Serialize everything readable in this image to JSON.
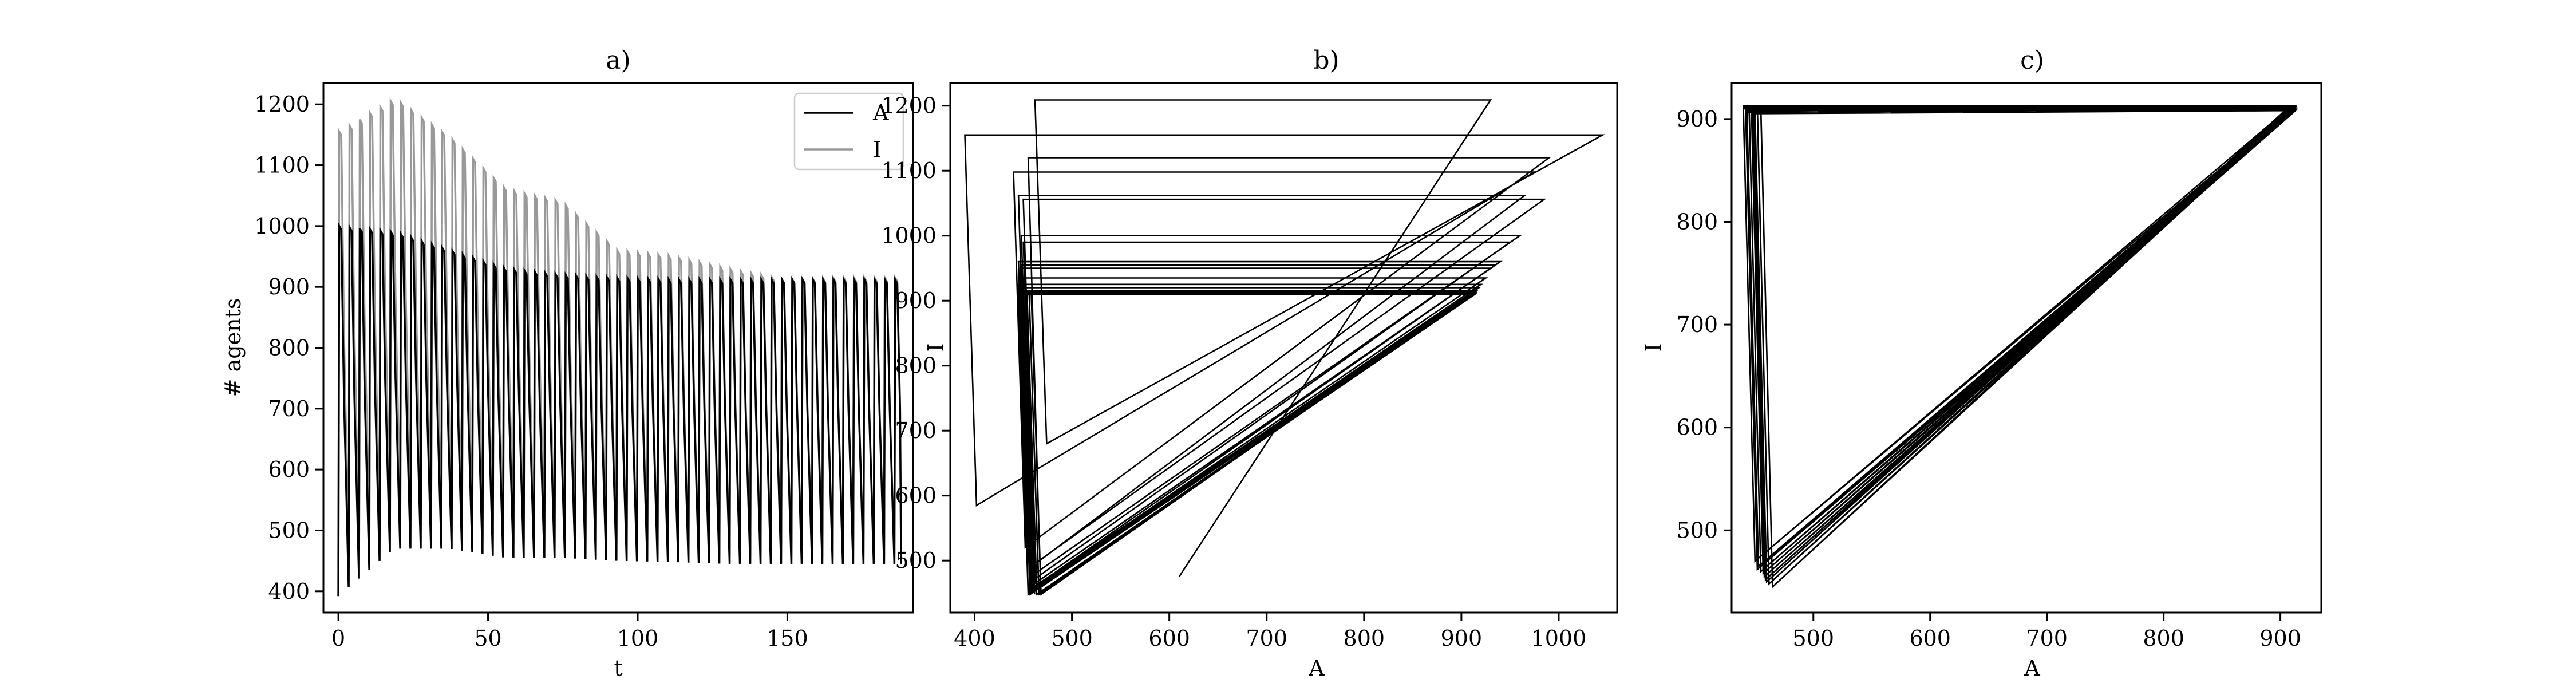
{
  "chart_data": [
    {
      "type": "line",
      "title": "a)",
      "xlabel": "t",
      "ylabel": "# agents",
      "xlim": [
        -5,
        192
      ],
      "ylim": [
        365,
        1235
      ],
      "xticks": [
        0,
        50,
        100,
        150
      ],
      "yticks": [
        400,
        500,
        600,
        700,
        800,
        900,
        1000,
        1100,
        1200
      ],
      "legend": "top-right",
      "series": [
        {
          "name": "A",
          "color": "#000000",
          "period": 3.44,
          "t_end": 188,
          "low": [
            392,
            470,
            470,
            455,
            455,
            450,
            448,
            445,
            445,
            445,
            445
          ],
          "high": [
            1000,
            990,
            960,
            930,
            920,
            915,
            912,
            912,
            912,
            912,
            912
          ]
        },
        {
          "name": "I",
          "color": "#999999",
          "period": 3.44,
          "t_end": 188,
          "low": [
            440,
            520,
            500,
            480,
            470,
            465,
            460,
            458,
            456,
            455,
            455
          ],
          "high": [
            1155,
            1209,
            1145,
            1060,
            1040,
            960,
            950,
            930,
            912,
            915,
            915
          ]
        }
      ]
    },
    {
      "type": "line",
      "title": "b)",
      "xlabel": "A",
      "ylabel": "I",
      "xlim": [
        375,
        1060
      ],
      "ylim": [
        420,
        1235
      ],
      "xticks": [
        400,
        500,
        600,
        700,
        800,
        900,
        1000
      ],
      "yticks": [
        500,
        600,
        700,
        800,
        900,
        1000,
        1100,
        1200
      ],
      "cycle_tops_A": [
        930,
        1045,
        975,
        990,
        965,
        985,
        960,
        950,
        940,
        935,
        930,
        925,
        920,
        918,
        915,
        914,
        913,
        912
      ],
      "cycle_tops_I": [
        1209,
        1155,
        1098,
        1120,
        1062,
        1056,
        1000,
        990,
        960,
        955,
        950,
        935,
        925,
        920,
        915,
        913,
        912,
        912
      ],
      "cycle_left_A": [
        462,
        390,
        440,
        455,
        445,
        450,
        448,
        450,
        445,
        448,
        447,
        446,
        445,
        445,
        445,
        445,
        445,
        445
      ],
      "cycle_bottom_I": [
        680,
        585,
        520,
        500,
        490,
        480,
        470,
        465,
        460,
        458,
        455,
        452,
        450,
        450,
        448,
        448,
        448,
        448
      ],
      "start": [
        610,
        475
      ],
      "color": "#000000"
    },
    {
      "type": "line",
      "title": "c)",
      "xlabel": "A",
      "ylabel": "I",
      "xlim": [
        430,
        935
      ],
      "ylim": [
        420,
        935
      ],
      "xticks": [
        500,
        600,
        700,
        800,
        900
      ],
      "yticks": [
        500,
        600,
        700,
        800,
        900
      ],
      "cycle_top_A": 913,
      "cycle_top_I": 913,
      "cycle_left_A": [
        440,
        443,
        445,
        448,
        450,
        452,
        455,
        447,
        442,
        449
      ],
      "cycle_bottom_I": [
        470,
        465,
        460,
        455,
        450,
        448,
        445,
        458,
        462,
        452
      ],
      "color": "#000000"
    }
  ]
}
